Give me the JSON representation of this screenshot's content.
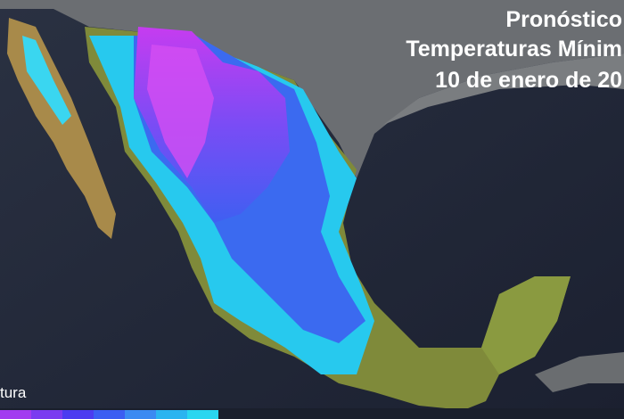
{
  "title": {
    "lines": [
      "Pronóstico",
      "Temperaturas Mínim",
      "10 de enero de 20"
    ]
  },
  "legend": {
    "label": "tura"
  }
}
